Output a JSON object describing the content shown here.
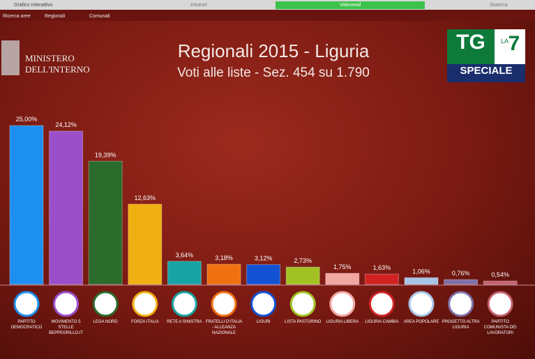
{
  "toolbar": {
    "tabs": [
      "Grafico Interattivo",
      "Intranet",
      "Videomail",
      "Sistema"
    ],
    "menu": [
      "Ricerca aree",
      "Regionali",
      "Comunali"
    ]
  },
  "logo": {
    "line1": "MINISTERO",
    "line2": "DELL'INTERNO"
  },
  "badge": {
    "tg": "TG",
    "la": "LA",
    "seven": "7",
    "label": "SPECIALE"
  },
  "chart_data": {
    "type": "bar",
    "title": "Regionali 2015 - Liguria",
    "subtitle": "Voti alle liste - Sez. 454 su 1.790",
    "categories": [
      "PARTITO DEMOCRATICO",
      "MOVIMENTO 5 STELLE BEPPEGRILLO.IT",
      "LEGA NORD",
      "FORZA ITALIA",
      "RETE A SINISTRA",
      "FRATELLI D'ITALIA - ALLEANZA NAZIONALE",
      "LIGURI",
      "LISTA PASTORINO",
      "LIGURIA LIBERA",
      "LIGURIA CAMBIA",
      "AREA POPOLARE",
      "PROGETTO ALTRA LIGURIA",
      "PARTITO COMUNISTA DEI LAVORATORI"
    ],
    "values": [
      25.0,
      24.12,
      19.39,
      12.63,
      3.64,
      3.18,
      3.12,
      2.73,
      1.75,
      1.63,
      1.06,
      0.76,
      0.54
    ],
    "value_labels": [
      "25,00%",
      "24,12%",
      "19,39%",
      "12,63%",
      "3,64%",
      "3,18%",
      "3,12%",
      "2,73%",
      "1,75%",
      "1,63%",
      "1,06%",
      "0,76%",
      "0,54%"
    ],
    "colors": [
      "#1d8ff0",
      "#9a4fc9",
      "#2b6b2b",
      "#f0b012",
      "#17a3a3",
      "#f07112",
      "#1452d4",
      "#a2c224",
      "#f2a6a2",
      "#d22222",
      "#a6c4e6",
      "#7e70a6",
      "#c4606e"
    ],
    "ylim": [
      0,
      26
    ]
  }
}
